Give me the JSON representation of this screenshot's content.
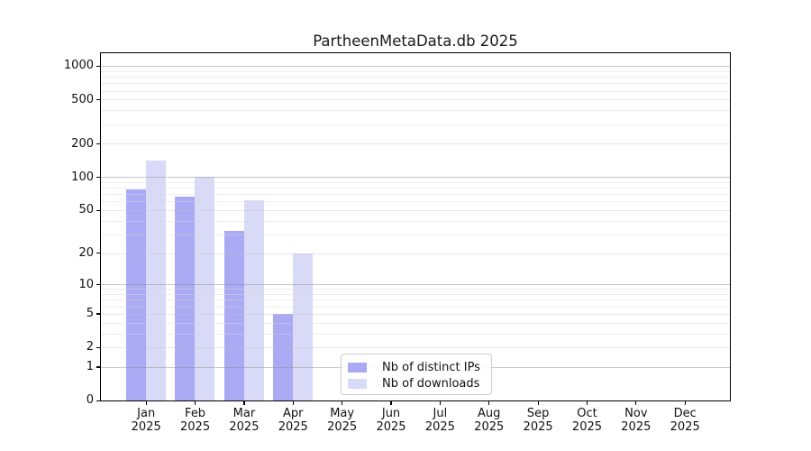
{
  "title": "PartheenMetaData.db 2025",
  "chart_data": {
    "type": "bar",
    "title": "PartheenMetaData.db 2025",
    "y_scale": "log10(1+v)",
    "ylim": [
      0,
      1305
    ],
    "grid": "on",
    "legend_position": "lower-center",
    "x_year_sublabel": "2025",
    "categories": [
      "Jan",
      "Feb",
      "Mar",
      "Apr",
      "May",
      "Jun",
      "Jul",
      "Aug",
      "Sep",
      "Oct",
      "Nov",
      "Dec"
    ],
    "series": [
      {
        "name": "Nb of distinct IPs",
        "color": "#a9a9f4",
        "values": [
          78,
          67,
          32,
          5,
          0,
          0,
          0,
          0,
          0,
          0,
          0,
          0
        ]
      },
      {
        "name": "Nb of downloads",
        "color": "#d9d9f8",
        "values": [
          140,
          100,
          62,
          20,
          0,
          0,
          0,
          0,
          0,
          0,
          0,
          0
        ]
      }
    ],
    "y_ticks_labeled": [
      0,
      1,
      2,
      5,
      10,
      20,
      50,
      100,
      200,
      500,
      1000
    ],
    "y_ticks_decade": [
      1,
      10,
      100,
      1000
    ],
    "y_minor_multiples": [
      3,
      4,
      6,
      7,
      8,
      9
    ],
    "y_minor_decades": [
      1,
      10,
      100
    ]
  },
  "legend": {
    "items": [
      {
        "label": "Nb of distinct IPs",
        "color": "#a9a9f4"
      },
      {
        "label": "Nb of downloads",
        "color": "#d9d9f8"
      }
    ]
  }
}
